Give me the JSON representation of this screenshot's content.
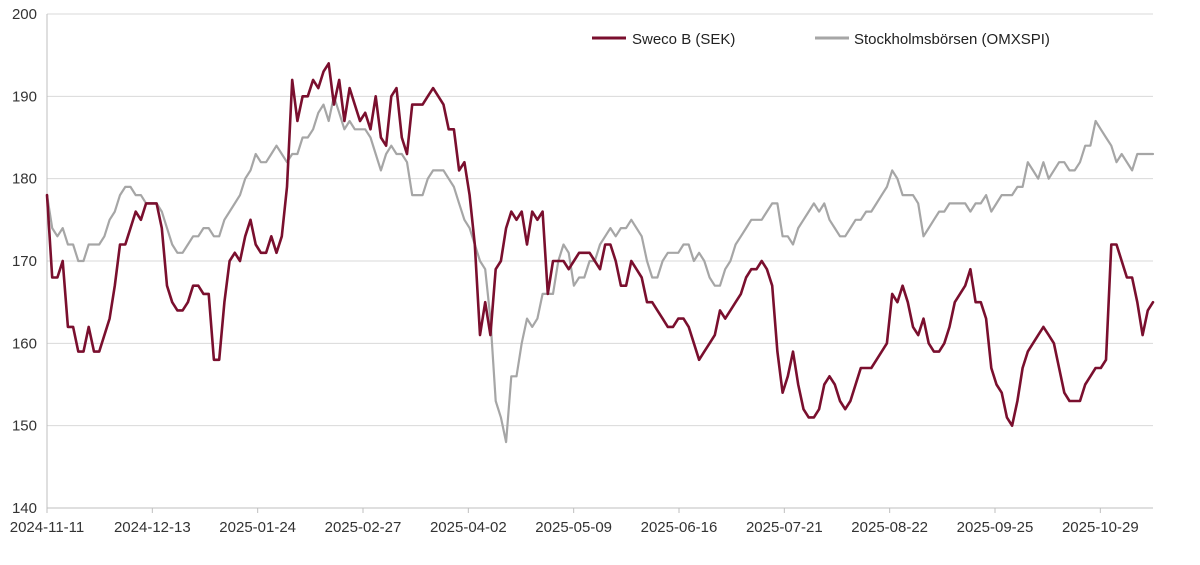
{
  "chart_data": {
    "type": "line",
    "title": "",
    "xlabel": "",
    "ylabel": "",
    "ylim": [
      140,
      200
    ],
    "yticks": [
      140,
      150,
      160,
      170,
      180,
      190,
      200
    ],
    "xtick_labels": [
      "2024-11-11",
      "2024-12-13",
      "2025-01-24",
      "2025-02-27",
      "2025-04-02",
      "2025-05-09",
      "2025-06-16",
      "2025-07-21",
      "2025-08-22",
      "2025-09-25",
      "2025-10-29"
    ],
    "grid": "horizontal",
    "legend_position": "top-right",
    "series": [
      {
        "name": "Sweco B (SEK)",
        "color": "#7a0f2e",
        "values": [
          178,
          168,
          168,
          170,
          162,
          162,
          159,
          159,
          162,
          159,
          159,
          161,
          163,
          167,
          172,
          172,
          174,
          176,
          175,
          177,
          177,
          177,
          174,
          167,
          165,
          164,
          164,
          165,
          167,
          167,
          166,
          166,
          158,
          158,
          165,
          170,
          171,
          170,
          173,
          175,
          172,
          171,
          171,
          173,
          171,
          173,
          179,
          192,
          187,
          190,
          190,
          192,
          191,
          193,
          194,
          189,
          192,
          187,
          191,
          189,
          187,
          188,
          186,
          190,
          185,
          184,
          190,
          191,
          185,
          183,
          189,
          189,
          189,
          190,
          191,
          190,
          189,
          186,
          186,
          181,
          182,
          178,
          172,
          161,
          165,
          161,
          169,
          170,
          174,
          176,
          175,
          176,
          172,
          176,
          175,
          176,
          166,
          170,
          170,
          170,
          169,
          170,
          171,
          171,
          171,
          170,
          169,
          172,
          172,
          170,
          167,
          167,
          170,
          169,
          168,
          165,
          165,
          164,
          163,
          162,
          162,
          163,
          163,
          162,
          160,
          158,
          159,
          160,
          161,
          164,
          163,
          164,
          165,
          166,
          168,
          169,
          169,
          170,
          169,
          167,
          159,
          154,
          156,
          159,
          155,
          152,
          151,
          151,
          152,
          155,
          156,
          155,
          153,
          152,
          153,
          155,
          157,
          157,
          157,
          158,
          159,
          160,
          166,
          165,
          167,
          165,
          162,
          161,
          163,
          160,
          159,
          159,
          160,
          162,
          165,
          166,
          167,
          169,
          165,
          165,
          163,
          157,
          155,
          154,
          151,
          150,
          153,
          157,
          159,
          160,
          161,
          162,
          161,
          160,
          157,
          154,
          153,
          153,
          153,
          155,
          156,
          157,
          157,
          158,
          172,
          172,
          170,
          168,
          168,
          165,
          161,
          164,
          165
        ]
      },
      {
        "name": "Stockholmsbörsen (OMXSPI)",
        "color": "#a6a6a6",
        "values": [
          178,
          174,
          173,
          174,
          172,
          172,
          170,
          170,
          172,
          172,
          172,
          173,
          175,
          176,
          178,
          179,
          179,
          178,
          178,
          177,
          177,
          177,
          176,
          174,
          172,
          171,
          171,
          172,
          173,
          173,
          174,
          174,
          173,
          173,
          175,
          176,
          177,
          178,
          180,
          181,
          183,
          182,
          182,
          183,
          184,
          183,
          182,
          183,
          183,
          185,
          185,
          186,
          188,
          189,
          187,
          190,
          188,
          186,
          187,
          186,
          186,
          186,
          185,
          183,
          181,
          183,
          184,
          183,
          183,
          182,
          178,
          178,
          178,
          180,
          181,
          181,
          181,
          180,
          179,
          177,
          175,
          174,
          172,
          170,
          169,
          163,
          153,
          151,
          148,
          156,
          156,
          160,
          163,
          162,
          163,
          166,
          166,
          166,
          170,
          172,
          171,
          167,
          168,
          168,
          170,
          170,
          172,
          173,
          174,
          173,
          174,
          174,
          175,
          174,
          173,
          170,
          168,
          168,
          170,
          171,
          171,
          171,
          172,
          172,
          170,
          171,
          170,
          168,
          167,
          167,
          169,
          170,
          172,
          173,
          174,
          175,
          175,
          175,
          176,
          177,
          177,
          173,
          173,
          172,
          174,
          175,
          176,
          177,
          176,
          177,
          175,
          174,
          173,
          173,
          174,
          175,
          175,
          176,
          176,
          177,
          178,
          179,
          181,
          180,
          178,
          178,
          178,
          177,
          173,
          174,
          175,
          176,
          176,
          177,
          177,
          177,
          177,
          176,
          177,
          177,
          178,
          176,
          177,
          178,
          178,
          178,
          179,
          179,
          182,
          181,
          180,
          182,
          180,
          181,
          182,
          182,
          181,
          181,
          182,
          184,
          184,
          187,
          186,
          185,
          184,
          182,
          183,
          182,
          181,
          183,
          183,
          183,
          183
        ]
      }
    ]
  }
}
